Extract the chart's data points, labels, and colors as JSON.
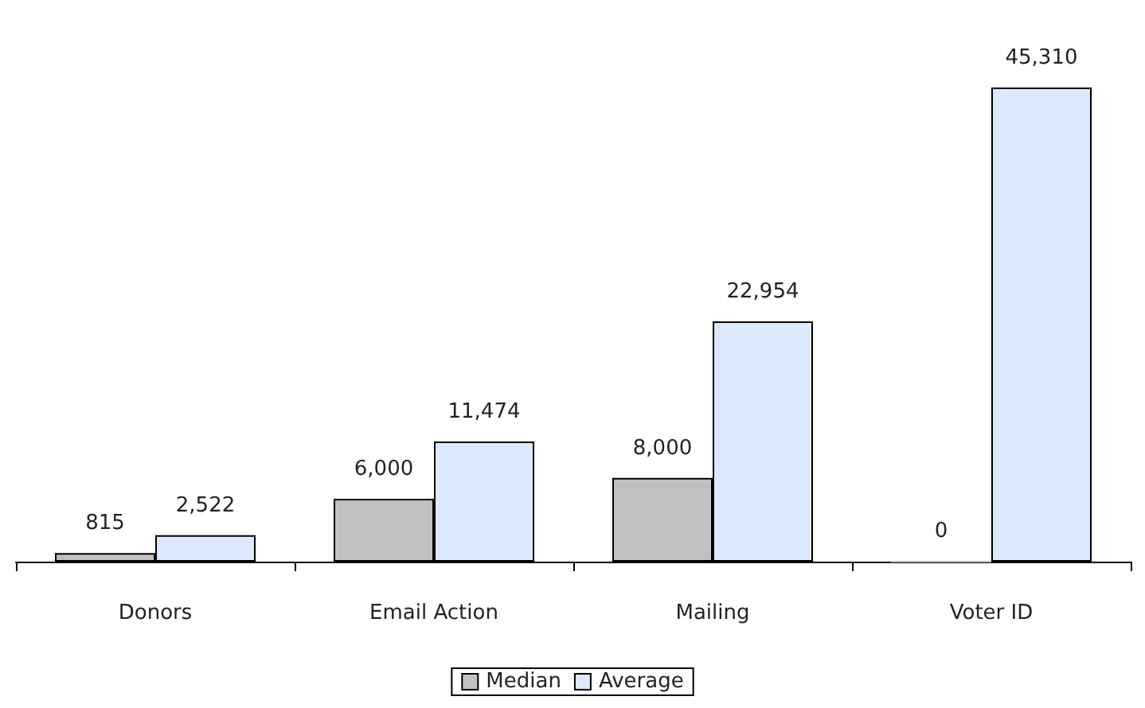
{
  "chart_data": {
    "type": "bar",
    "categories": [
      "Donors",
      "Email Action",
      "Mailing",
      "Voter ID"
    ],
    "series": [
      {
        "name": "Median",
        "color": "#c0c0c0",
        "values": [
          815,
          6000,
          8000,
          0
        ],
        "value_labels": [
          "815",
          "6,000",
          "8,000",
          "0"
        ]
      },
      {
        "name": "Average",
        "color": "#dce9fc",
        "values": [
          2522,
          11474,
          22954,
          45310
        ],
        "value_labels": [
          "2,522",
          "11,474",
          "22,954",
          "45,310"
        ]
      }
    ],
    "legend": "bottom",
    "grid": false
  }
}
